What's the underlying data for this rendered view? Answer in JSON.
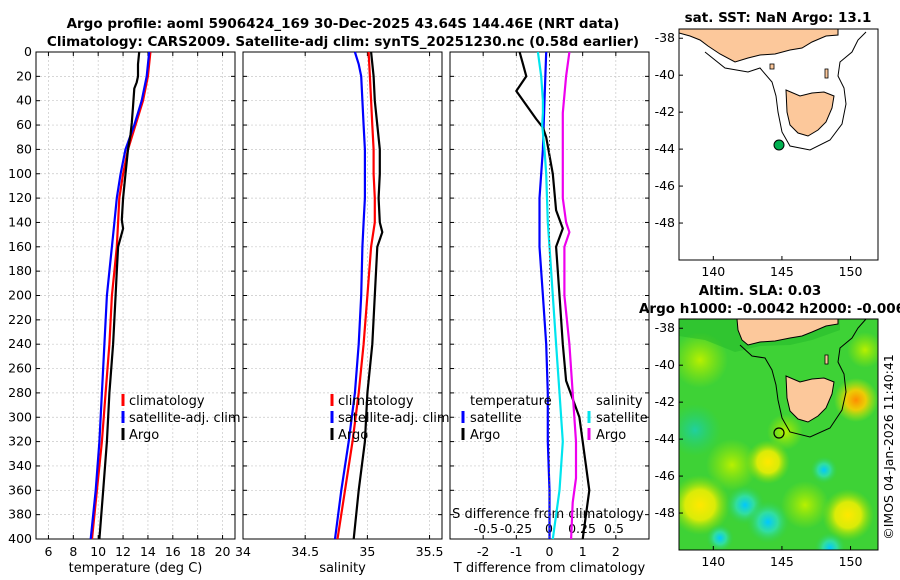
{
  "title_line1": "Argo profile: aoml 5906424_169 30-Dec-2025 43.64S 144.46E (NRT data)",
  "title_line2": "Climatology: CARS2009. Satellite-adj clim: synTS_20251230.nc (0.58d earlier)",
  "stamp": "©IMOS 04-Jan-2026 11:40:41",
  "colors": {
    "climatology": "#ff0000",
    "satellite": "#0000ff",
    "argo": "#000000",
    "sat_salinity": "#00e5ee",
    "argo_salinity": "#ee00ee",
    "land": "#fcc89b",
    "grid": "#c8c8c8"
  },
  "chart_data": [
    {
      "type": "line",
      "name": "temperature",
      "xlabel": "temperature (deg C)",
      "xlim": [
        5,
        21
      ],
      "xticks": [
        6,
        8,
        10,
        12,
        14,
        16,
        18,
        20
      ],
      "ylim": [
        0,
        400
      ],
      "yticks": [
        0,
        20,
        40,
        60,
        80,
        100,
        120,
        140,
        160,
        180,
        200,
        220,
        240,
        260,
        280,
        300,
        320,
        340,
        360,
        380,
        400
      ],
      "legend": [
        "climatology",
        "satellite-adj. clim",
        "Argo"
      ],
      "series": [
        {
          "name": "climatology",
          "points": [
            [
              14.2,
              0
            ],
            [
              14.0,
              20
            ],
            [
              13.6,
              40
            ],
            [
              13.0,
              60
            ],
            [
              12.4,
              80
            ],
            [
              12.0,
              100
            ],
            [
              11.7,
              120
            ],
            [
              11.6,
              140
            ],
            [
              11.5,
              160
            ],
            [
              11.3,
              180
            ],
            [
              11.1,
              200
            ],
            [
              10.9,
              240
            ],
            [
              10.6,
              280
            ],
            [
              10.3,
              320
            ],
            [
              9.9,
              360
            ],
            [
              9.5,
              400
            ]
          ]
        },
        {
          "name": "satellite-adj. clim",
          "points": [
            [
              14.1,
              0
            ],
            [
              13.9,
              20
            ],
            [
              13.5,
              40
            ],
            [
              12.9,
              60
            ],
            [
              12.2,
              80
            ],
            [
              11.8,
              100
            ],
            [
              11.5,
              120
            ],
            [
              11.3,
              140
            ],
            [
              11.1,
              160
            ],
            [
              10.9,
              180
            ],
            [
              10.7,
              200
            ],
            [
              10.5,
              240
            ],
            [
              10.3,
              280
            ],
            [
              10.1,
              320
            ],
            [
              9.8,
              360
            ],
            [
              9.4,
              400
            ]
          ]
        },
        {
          "name": "Argo",
          "points": [
            [
              13.3,
              0
            ],
            [
              13.2,
              10
            ],
            [
              13.2,
              20
            ],
            [
              13.1,
              25
            ],
            [
              12.9,
              30
            ],
            [
              12.8,
              45
            ],
            [
              12.7,
              58
            ],
            [
              12.6,
              68
            ],
            [
              12.4,
              80
            ],
            [
              12.2,
              100
            ],
            [
              12.0,
              120
            ],
            [
              11.9,
              138
            ],
            [
              12.0,
              145
            ],
            [
              11.6,
              160
            ],
            [
              11.5,
              180
            ],
            [
              11.4,
              200
            ],
            [
              11.2,
              240
            ],
            [
              10.9,
              280
            ],
            [
              10.7,
              320
            ],
            [
              10.4,
              360
            ],
            [
              10.1,
              400
            ]
          ]
        }
      ]
    },
    {
      "type": "line",
      "name": "salinity",
      "xlabel": "salinity",
      "xlim": [
        34,
        35.6
      ],
      "xticks": [
        34,
        34.5,
        35,
        35.5
      ],
      "xticklabels": [
        "34",
        "34.5",
        "35",
        "35.5"
      ],
      "ylim": [
        0,
        400
      ],
      "legend": [
        "climatology",
        "satellite-adj. clim",
        "Argo"
      ],
      "series": [
        {
          "name": "climatology",
          "points": [
            [
              35.01,
              0
            ],
            [
              35.02,
              20
            ],
            [
              35.03,
              40
            ],
            [
              35.04,
              60
            ],
            [
              35.05,
              80
            ],
            [
              35.05,
              100
            ],
            [
              35.06,
              120
            ],
            [
              35.06,
              140
            ],
            [
              35.03,
              160
            ],
            [
              35.0,
              200
            ],
            [
              34.97,
              240
            ],
            [
              34.93,
              280
            ],
            [
              34.88,
              320
            ],
            [
              34.82,
              360
            ],
            [
              34.76,
              400
            ]
          ]
        },
        {
          "name": "satellite-adj. clim",
          "points": [
            [
              34.9,
              0
            ],
            [
              34.93,
              10
            ],
            [
              34.95,
              20
            ],
            [
              34.96,
              40
            ],
            [
              34.97,
              60
            ],
            [
              34.98,
              80
            ],
            [
              34.98,
              100
            ],
            [
              34.98,
              120
            ],
            [
              34.97,
              140
            ],
            [
              34.96,
              160
            ],
            [
              34.95,
              200
            ],
            [
              34.93,
              240
            ],
            [
              34.9,
              280
            ],
            [
              34.85,
              320
            ],
            [
              34.79,
              360
            ],
            [
              34.74,
              400
            ]
          ]
        },
        {
          "name": "Argo",
          "points": [
            [
              35.03,
              0
            ],
            [
              35.05,
              20
            ],
            [
              35.06,
              40
            ],
            [
              35.08,
              60
            ],
            [
              35.1,
              80
            ],
            [
              35.1,
              100
            ],
            [
              35.09,
              120
            ],
            [
              35.1,
              140
            ],
            [
              35.12,
              148
            ],
            [
              35.08,
              160
            ],
            [
              35.06,
              200
            ],
            [
              35.04,
              240
            ],
            [
              35.0,
              280
            ],
            [
              34.98,
              320
            ],
            [
              34.93,
              360
            ],
            [
              34.89,
              400
            ]
          ]
        }
      ]
    },
    {
      "type": "line",
      "name": "difference",
      "xlabel": "T difference from climatology",
      "xlabel_top": "S difference from climatology",
      "xlim": [
        -3,
        3
      ],
      "xticks": [
        -2,
        -1,
        0,
        1,
        2
      ],
      "xticks_top": [
        "-0.5",
        "-0.25",
        "0",
        "0.25",
        "0.5"
      ],
      "ylim": [
        0,
        400
      ],
      "legend_left": [
        "temperature",
        "satellite",
        "Argo"
      ],
      "legend_right": [
        "salinity",
        "satellite",
        "Argo"
      ],
      "series": [
        {
          "name": "temperature satellite",
          "points": [
            [
              -0.1,
              0
            ],
            [
              -0.15,
              40
            ],
            [
              -0.2,
              80
            ],
            [
              -0.3,
              120
            ],
            [
              -0.3,
              160
            ],
            [
              -0.2,
              200
            ],
            [
              -0.1,
              240
            ],
            [
              -0.05,
              280
            ],
            [
              -0.05,
              320
            ],
            [
              0.0,
              360
            ],
            [
              0.0,
              400
            ]
          ]
        },
        {
          "name": "temperature Argo",
          "points": [
            [
              -0.9,
              0
            ],
            [
              -0.8,
              10
            ],
            [
              -0.7,
              20
            ],
            [
              -1.0,
              32
            ],
            [
              -0.4,
              55
            ],
            [
              -0.2,
              62
            ],
            [
              -0.1,
              70
            ],
            [
              0.1,
              100
            ],
            [
              0.2,
              130
            ],
            [
              0.4,
              145
            ],
            [
              0.2,
              160
            ],
            [
              0.3,
              200
            ],
            [
              0.4,
              240
            ],
            [
              0.5,
              270
            ],
            [
              0.9,
              300
            ],
            [
              1.0,
              320
            ],
            [
              1.1,
              340
            ],
            [
              1.2,
              360
            ],
            [
              1.1,
              380
            ],
            [
              1.0,
              400
            ]
          ]
        },
        {
          "name": "salinity satellite",
          "points": [
            [
              -0.35,
              0
            ],
            [
              -0.25,
              20
            ],
            [
              -0.2,
              40
            ],
            [
              -0.2,
              50
            ],
            [
              -0.22,
              60
            ],
            [
              -0.15,
              80
            ],
            [
              -0.1,
              100
            ],
            [
              -0.05,
              140
            ],
            [
              0.0,
              160
            ],
            [
              0.1,
              200
            ],
            [
              0.2,
              240
            ],
            [
              0.3,
              280
            ],
            [
              0.4,
              320
            ],
            [
              0.3,
              360
            ],
            [
              0.1,
              400
            ]
          ]
        },
        {
          "name": "salinity Argo",
          "points": [
            [
              0.6,
              0
            ],
            [
              0.5,
              20
            ],
            [
              0.4,
              50
            ],
            [
              0.4,
              80
            ],
            [
              0.4,
              120
            ],
            [
              0.5,
              140
            ],
            [
              0.6,
              148
            ],
            [
              0.45,
              160
            ],
            [
              0.45,
              200
            ],
            [
              0.6,
              240
            ],
            [
              0.7,
              280
            ],
            [
              0.8,
              320
            ],
            [
              0.8,
              350
            ],
            [
              0.7,
              370
            ],
            [
              0.65,
              400
            ]
          ]
        },
        {
          "name": "zero line",
          "points": [
            [
              0,
              0
            ],
            [
              0,
              400
            ]
          ]
        }
      ]
    },
    {
      "type": "map",
      "name": "sst map",
      "title": "sat. SST: NaN Argo: 13.1",
      "xlim": [
        137.5,
        152
      ],
      "ylim": [
        -50,
        -37.5
      ],
      "xticks": [
        140,
        145,
        150
      ],
      "yticks": [
        -38,
        -40,
        -42,
        -44,
        -46,
        -48
      ],
      "float": [
        144.46,
        -43.64
      ]
    },
    {
      "type": "map",
      "name": "altimetry map",
      "title_line1": "Altim. SLA: 0.03",
      "title_line2": "Argo h1000: -0.0042 h2000: -0.006",
      "xlim": [
        137.5,
        152
      ],
      "ylim": [
        -50,
        -37.5
      ],
      "xticks": [
        140,
        145,
        150
      ],
      "yticks": [
        -38,
        -40,
        -42,
        -44,
        -46,
        -48
      ],
      "float": [
        144.46,
        -43.64
      ]
    }
  ]
}
